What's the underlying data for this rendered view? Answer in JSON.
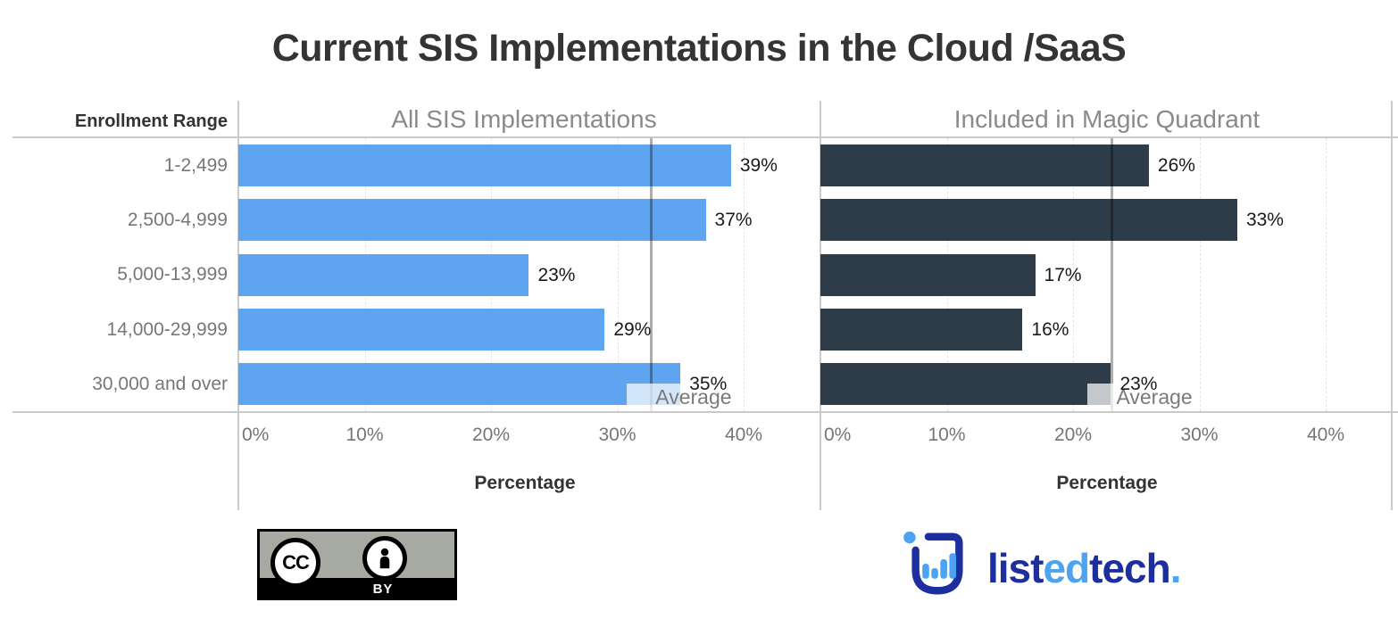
{
  "title": "Current SIS Implementations in the Cloud /SaaS",
  "chart_data": {
    "type": "bar",
    "orientation": "horizontal",
    "categories_label": "Enrollment Range",
    "categories": [
      "1-2,499",
      "2,500-4,999",
      "5,000-13,999",
      "14,000-29,999",
      "30,000 and over"
    ],
    "series": [
      {
        "name": "All SIS Implementations",
        "values": [
          39,
          37,
          23,
          29,
          35
        ],
        "average": 32.6,
        "color": "#5ea4f0"
      },
      {
        "name": "Included in Magic Quadrant",
        "values": [
          26,
          33,
          17,
          16,
          23
        ],
        "average": 23,
        "color": "#2e3b48"
      }
    ],
    "average_label": "Average",
    "xlabel": "Percentage",
    "x_ticks": [
      "0%",
      "10%",
      "20%",
      "30%",
      "40%"
    ],
    "xlim": [
      0,
      45
    ],
    "value_suffix": "%",
    "grid": true,
    "legend": "none",
    "reference_line_color": "rgba(0,0,0,0.32)"
  },
  "footer": {
    "license": {
      "cc_label": "CC",
      "by_label": "BY"
    },
    "logo": {
      "dark_color": "#1d2f9f",
      "light_color": "#4ba3f2",
      "text_parts": [
        {
          "text": "list",
          "tone": "dark"
        },
        {
          "text": "ed",
          "tone": "light"
        },
        {
          "text": "tech",
          "tone": "dark"
        },
        {
          "text": ".",
          "tone": "light"
        }
      ]
    }
  }
}
